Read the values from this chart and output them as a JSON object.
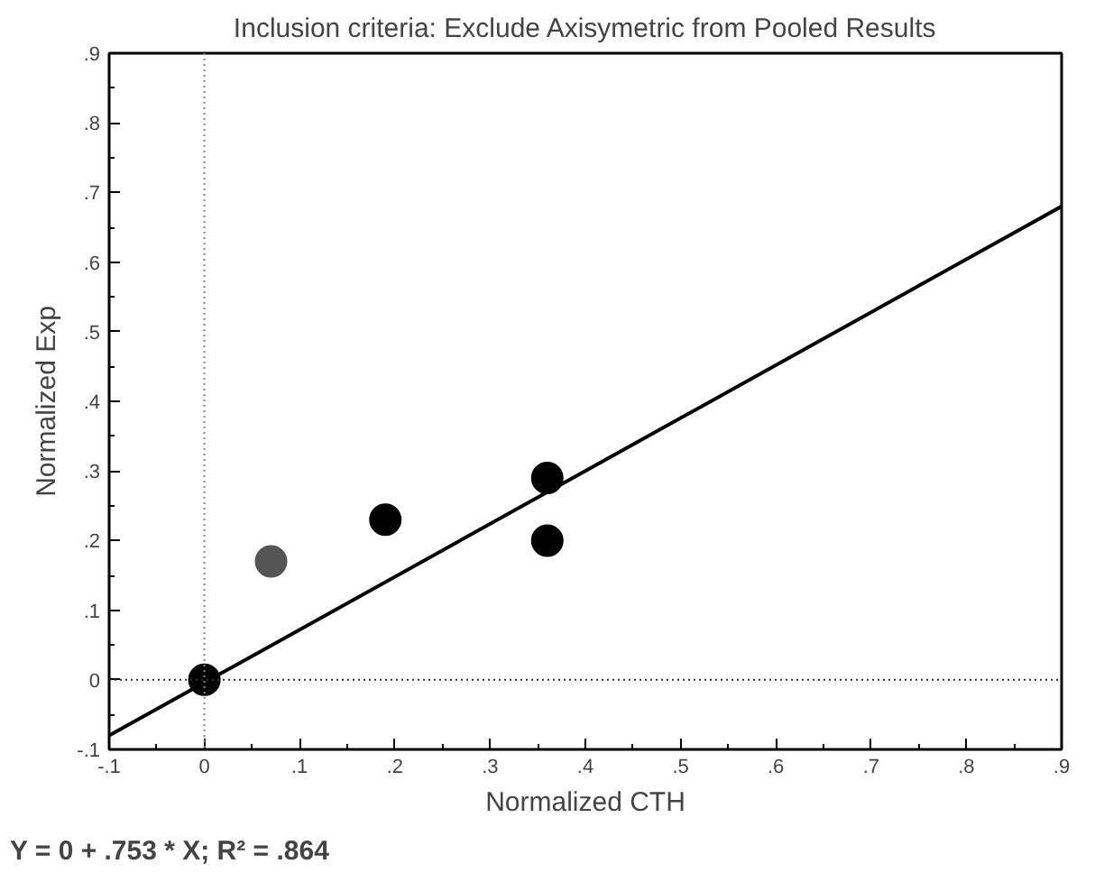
{
  "chart_data": {
    "type": "scatter",
    "title": "Inclusion criteria: Exclude Axisymetric from Pooled Results",
    "xlabel": "Normalized CTH",
    "ylabel": "Normalized Exp",
    "series": [
      {
        "color": "#000000",
        "x": [
          0,
          0.19,
          0.36,
          0.36
        ],
        "values": [
          0,
          0.23,
          0.29,
          0.2
        ]
      },
      {
        "color": "#555555",
        "x": [
          0.07
        ],
        "values": [
          0.17
        ]
      },
      {
        "type": "line",
        "marker": "none",
        "color": "#000000",
        "x": [
          -0.1,
          0.9
        ],
        "values": [
          -0.08,
          0.68
        ]
      }
    ],
    "xlim": [
      -0.1,
      0.9
    ],
    "ylim": [
      -0.1,
      0.9
    ],
    "xticks": [
      {
        "value": -0.1,
        "label": "-.1"
      },
      0,
      {
        "value": 0.1,
        "label": ".1"
      },
      {
        "value": 0.2,
        "label": ".2"
      },
      {
        "value": 0.3,
        "label": ".3"
      },
      {
        "value": 0.4,
        "label": ".4"
      },
      {
        "value": 0.5,
        "label": ".5"
      },
      {
        "value": 0.6,
        "label": ".6"
      },
      {
        "value": 0.7,
        "label": ".7"
      },
      {
        "value": 0.8,
        "label": ".8"
      },
      {
        "value": 0.9,
        "label": ".9"
      }
    ],
    "yticks": [
      {
        "value": -0.1,
        "label": "-.1"
      },
      0,
      {
        "value": 0.1,
        "label": ".1"
      },
      {
        "value": 0.2,
        "label": ".2"
      },
      {
        "value": 0.3,
        "label": ".3"
      },
      {
        "value": 0.4,
        "label": ".4"
      },
      {
        "value": 0.5,
        "label": ".5"
      },
      {
        "value": 0.6,
        "label": ".6"
      },
      {
        "value": 0.7,
        "label": ".7"
      },
      {
        "value": 0.8,
        "label": ".8"
      },
      {
        "value": 0.9,
        "label": ".9"
      }
    ],
    "ref_lines": [
      {
        "axis": "x",
        "value": 0,
        "line_style": "dotted",
        "color": "#888888"
      },
      {
        "axis": "y",
        "value": 0,
        "line_style": "dotted",
        "color": "#333333"
      }
    ],
    "marker": "circle",
    "grid": false,
    "annotations": [
      "Y = 0 + .753 * X; R² = .864"
    ]
  }
}
